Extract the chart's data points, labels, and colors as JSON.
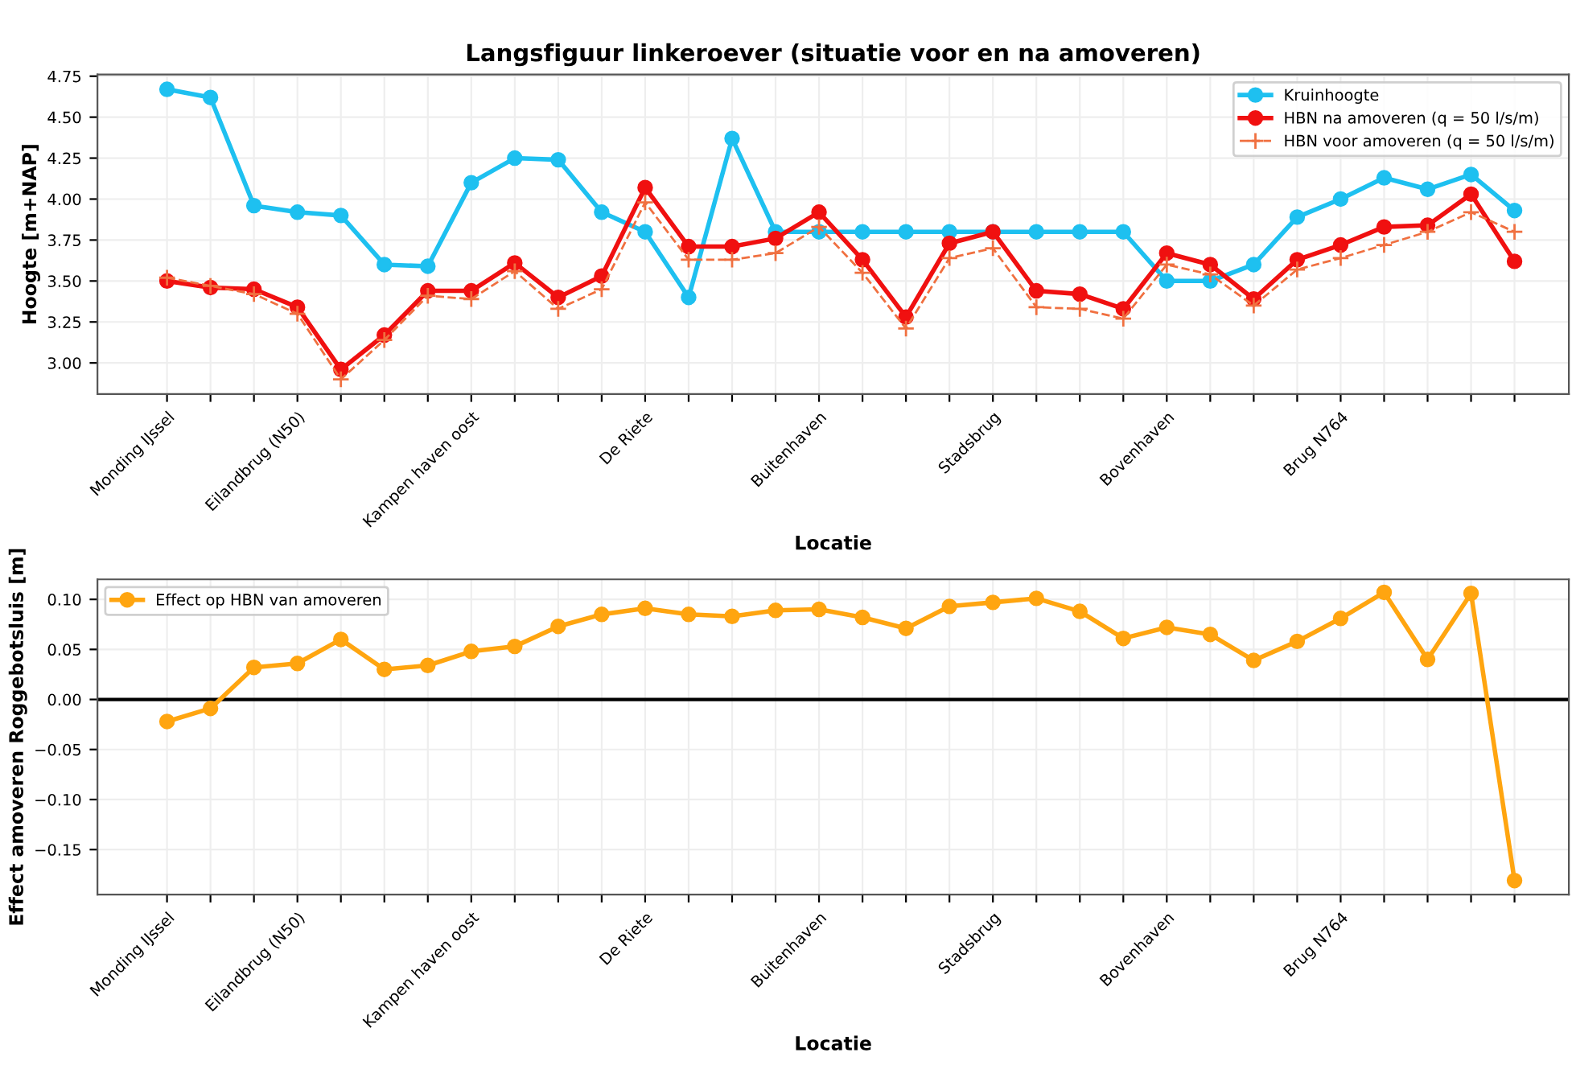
{
  "chart_data": [
    {
      "type": "line",
      "title": "Langsfiguur linkeroever (situatie voor en na amoveren)",
      "xlabel": "Locatie",
      "ylabel": "Hoogte [m+NAP]",
      "categories": [
        "Monding IJssel",
        null,
        null,
        "Eilandbrug (N50)",
        null,
        null,
        null,
        "Kampen haven oost",
        null,
        null,
        null,
        "De Riete",
        null,
        null,
        null,
        "Buitenhaven",
        null,
        null,
        null,
        "Stadsbrug",
        null,
        null,
        null,
        "Bovenhaven",
        null,
        null,
        null,
        "Brug N764",
        null,
        null,
        null,
        null
      ],
      "series": [
        {
          "name": "Kruinhoogte",
          "color": "#1ec0f0",
          "marker": "circle",
          "line_style": "solid",
          "values": [
            4.67,
            4.62,
            3.96,
            3.92,
            3.9,
            3.6,
            3.59,
            4.1,
            4.25,
            4.24,
            3.92,
            3.8,
            3.4,
            4.37,
            3.8,
            3.8,
            3.8,
            3.8,
            3.8,
            3.8,
            3.8,
            3.8,
            3.8,
            3.5,
            3.5,
            3.6,
            3.89,
            4.0,
            4.13,
            4.06,
            4.15,
            3.93
          ]
        },
        {
          "name": "HBN na amoveren (q = 50 l/s/m)",
          "color": "#f01010",
          "marker": "circle",
          "line_style": "solid",
          "values": [
            3.5,
            3.46,
            3.45,
            3.34,
            2.96,
            3.17,
            3.44,
            3.44,
            3.61,
            3.4,
            3.53,
            4.07,
            3.71,
            3.71,
            3.76,
            3.92,
            3.63,
            3.28,
            3.73,
            3.8,
            3.44,
            3.42,
            3.33,
            3.67,
            3.6,
            3.39,
            3.63,
            3.72,
            3.83,
            3.84,
            4.03,
            3.62
          ]
        },
        {
          "name": "HBN voor amoveren (q = 50 l/s/m)",
          "color": "#f07040",
          "marker": "cross",
          "line_style": "dashed",
          "values": [
            3.52,
            3.47,
            3.42,
            3.3,
            2.9,
            3.14,
            3.41,
            3.39,
            3.56,
            3.33,
            3.45,
            3.98,
            3.63,
            3.63,
            3.67,
            3.83,
            3.55,
            3.21,
            3.64,
            3.7,
            3.34,
            3.33,
            3.27,
            3.6,
            3.54,
            3.35,
            3.57,
            3.64,
            3.72,
            3.8,
            3.92,
            3.8
          ]
        }
      ],
      "ylim": [
        2.81,
        4.76
      ],
      "yticks": [
        {
          "value": 3.0,
          "label": "3.00"
        },
        {
          "value": 3.25,
          "label": "3.25"
        },
        {
          "value": 3.5,
          "label": "3.50"
        },
        {
          "value": 3.75,
          "label": "3.75"
        },
        {
          "value": 4.0,
          "label": "4.00"
        },
        {
          "value": 4.25,
          "label": "4.25"
        },
        {
          "value": 4.5,
          "label": "4.50"
        },
        {
          "value": 4.75,
          "label": "4.75"
        }
      ],
      "grid": true,
      "legend": "top right"
    },
    {
      "type": "line",
      "xlabel": "Locatie",
      "ylabel": "Effect amoveren Roggebotsluis [m]",
      "categories": [
        "Monding IJssel",
        null,
        null,
        "Eilandbrug (N50)",
        null,
        null,
        null,
        "Kampen haven oost",
        null,
        null,
        null,
        "De Riete",
        null,
        null,
        null,
        "Buitenhaven",
        null,
        null,
        null,
        "Stadsbrug",
        null,
        null,
        null,
        "Bovenhaven",
        null,
        null,
        null,
        "Brug N764",
        null,
        null,
        null,
        null
      ],
      "series": [
        {
          "name": "Effect op HBN van amoveren",
          "color": "#ffa510",
          "marker": "circle",
          "line_style": "solid",
          "values": [
            -0.022,
            -0.009,
            0.032,
            0.036,
            0.06,
            0.03,
            0.034,
            0.048,
            0.053,
            0.073,
            0.085,
            0.091,
            0.085,
            0.083,
            0.089,
            0.09,
            0.082,
            0.071,
            0.093,
            0.097,
            0.101,
            0.088,
            0.061,
            0.072,
            0.065,
            0.039,
            0.058,
            0.081,
            0.107,
            0.04,
            0.106,
            -0.181
          ]
        }
      ],
      "ylim": [
        -0.195,
        0.12
      ],
      "yticks": [
        {
          "value": -0.15,
          "label": "−0.15"
        },
        {
          "value": -0.1,
          "label": "−0.10"
        },
        {
          "value": -0.05,
          "label": "−0.05"
        },
        {
          "value": 0.0,
          "label": "0.00"
        },
        {
          "value": 0.05,
          "label": "0.05"
        },
        {
          "value": 0.1,
          "label": "0.10"
        }
      ],
      "ref_lines": [
        {
          "axis": "y",
          "value": 0,
          "color": "#000000"
        }
      ],
      "grid": true,
      "legend": "top left"
    }
  ]
}
